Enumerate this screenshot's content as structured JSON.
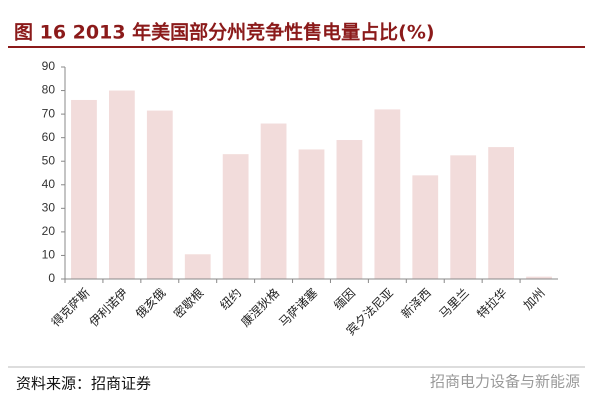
{
  "chart_data": {
    "type": "bar",
    "title": "图 16    2013 年美国部分州竞争性售电量占比(%)",
    "categories": [
      "得克萨斯",
      "伊利诺伊",
      "俄亥俄",
      "密歇根",
      "纽约",
      "康涅狄格",
      "马萨诸塞",
      "缅因",
      "宾夕法尼亚",
      "新泽西",
      "马里兰",
      "特拉华",
      "加州"
    ],
    "values": [
      76,
      80,
      71.5,
      10.5,
      53,
      66,
      55,
      59,
      72,
      44,
      52.5,
      56,
      1
    ],
    "color": "#f2dcdb",
    "ylim": [
      0,
      90
    ],
    "yticks": [
      0,
      10,
      20,
      30,
      40,
      50,
      60,
      70,
      80,
      90
    ],
    "source": "资料来源：招商证券",
    "watermark": "招商电力设备与新能源"
  }
}
